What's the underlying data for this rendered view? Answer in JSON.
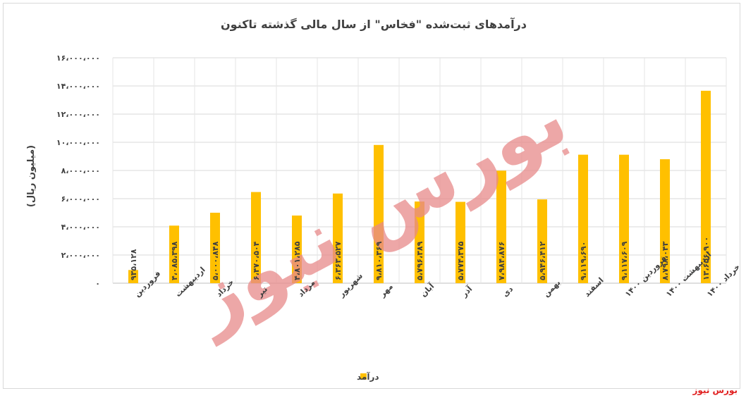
{
  "source_label": "بورس نیوز",
  "watermark": "بورس نیوز",
  "chart_data": {
    "type": "bar",
    "title": "درآمدهای ثبت‌شده \"فخاس\" از سال مالی گذشته تاکنون",
    "ylabel": "(میلیون ریال)",
    "xlabel": "",
    "ylim": [
      0,
      16000000
    ],
    "yticks": [
      0,
      2000000,
      4000000,
      6000000,
      8000000,
      10000000,
      12000000,
      14000000,
      16000000
    ],
    "ytick_labels": [
      "۰",
      "۲،۰۰۰،۰۰۰",
      "۴،۰۰۰،۰۰۰",
      "۶،۰۰۰،۰۰۰",
      "۸،۰۰۰،۰۰۰",
      "۱۰،۰۰۰،۰۰۰",
      "۱۲،۰۰۰،۰۰۰",
      "۱۴،۰۰۰،۰۰۰",
      "۱۶،۰۰۰،۰۰۰"
    ],
    "grid": true,
    "legend_position": "bottom",
    "bar_color": "#ffc000",
    "categories": [
      "فروردین",
      "اردیبهشت",
      "خرداد",
      "تیر",
      "مرداد",
      "شهریور",
      "مهر",
      "آبان",
      "آذر",
      "دی",
      "بهمن",
      "اسفند",
      "فروردین ۱۴۰۰",
      "اردیبهشت ۱۴۰۰",
      "خرداد ۱۴۰۰"
    ],
    "series": [
      {
        "name": "درآمد",
        "values": [
          935128,
          4085398,
          5000848,
          6470504,
          4801285,
          6363527,
          9810369,
          5796389,
          5774375,
          7984876,
          5946412,
          9119690,
          9117609,
          8798043,
          13656900
        ],
        "labels": [
          "۹۳۵،۱۲۸",
          "۴،۰۸۵،۳۹۸",
          "۵،۰۰۰،۸۴۸",
          "۶،۴۷۰،۵۰۴",
          "۴،۸۰۱،۲۸۵",
          "۶،۳۶۳،۵۲۷",
          "۹،۸۱۰،۳۶۹",
          "۵،۷۹۶،۳۸۹",
          "۵،۷۷۴،۳۷۵",
          "۷،۹۸۴،۸۷۶",
          "۵،۹۴۶،۴۱۲",
          "۹،۱۱۹،۶۹۰",
          "۹،۱۱۷،۶۰۹",
          "۸،۷۹۸،۰۴۳",
          "۱۳،۶۵۶،۹۰۰"
        ]
      }
    ]
  }
}
